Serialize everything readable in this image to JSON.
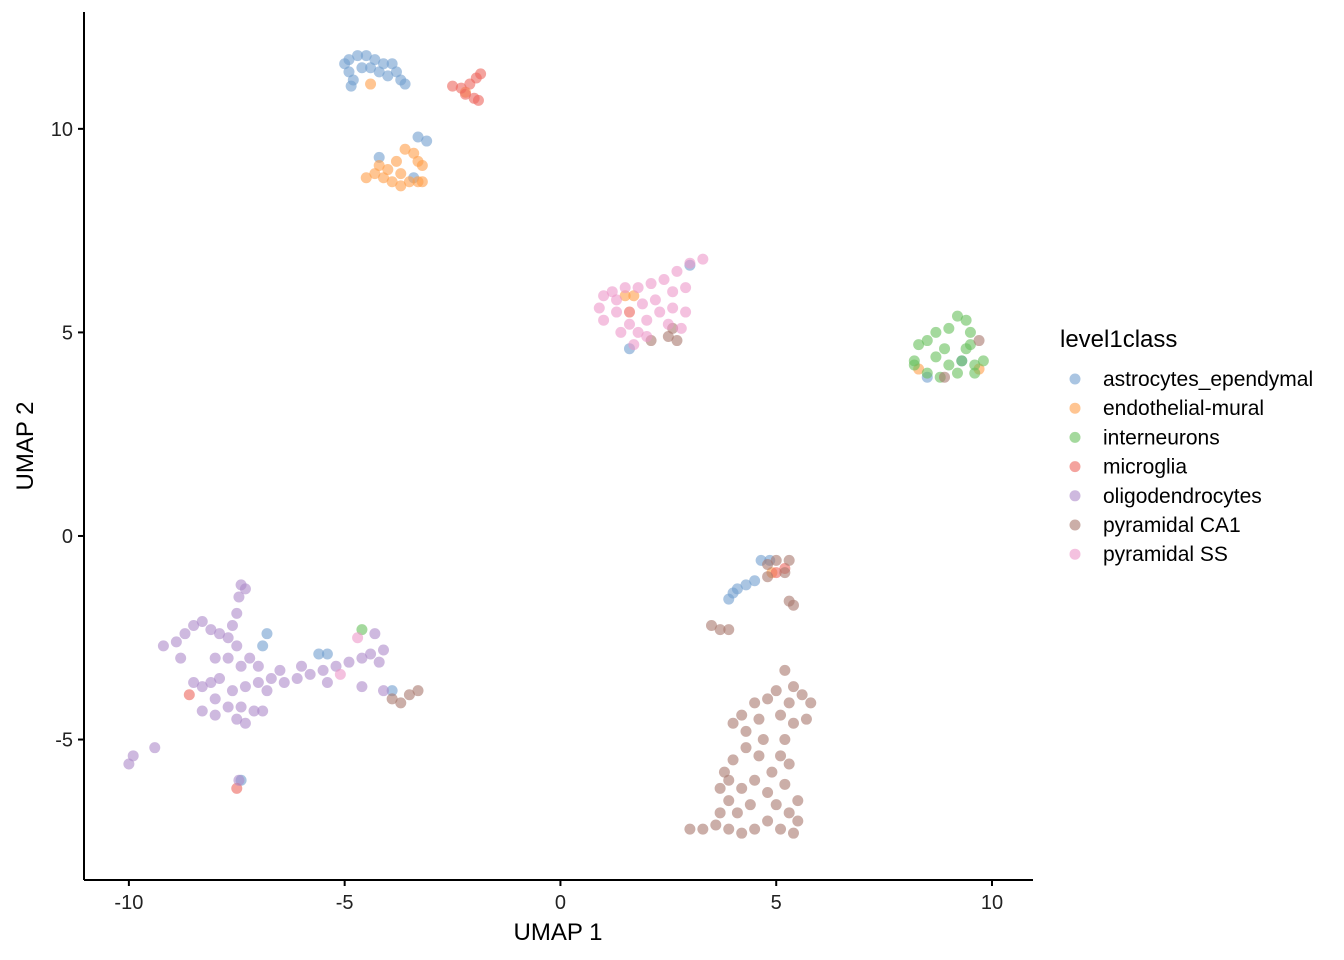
{
  "chart_data": {
    "type": "scatter",
    "xlabel": "UMAP 1",
    "ylabel": "UMAP 2",
    "xlim": [
      -11.04,
      10.95
    ],
    "ylim": [
      -8.45,
      12.87
    ],
    "xticks": [
      -10,
      -5,
      0,
      5,
      10
    ],
    "yticks": [
      -5,
      0,
      5,
      10
    ],
    "grid": false,
    "point_alpha": 0.6,
    "legend": {
      "title": "level1class",
      "placement": "right"
    },
    "series": [
      {
        "name": "astrocytes_ependymal",
        "color": "#729ECE",
        "points": [
          [
            -4.9,
            11.7
          ],
          [
            -4.7,
            11.8
          ],
          [
            -4.5,
            11.8
          ],
          [
            -4.3,
            11.7
          ],
          [
            -4.1,
            11.6
          ],
          [
            -3.9,
            11.6
          ],
          [
            -3.8,
            11.4
          ],
          [
            -3.7,
            11.2
          ],
          [
            -3.6,
            11.1
          ],
          [
            -4.9,
            11.4
          ],
          [
            -4.8,
            11.2
          ],
          [
            -4.6,
            11.5
          ],
          [
            -4.4,
            11.5
          ],
          [
            -4.2,
            11.4
          ],
          [
            -4.0,
            11.3
          ],
          [
            -5.0,
            11.6
          ],
          [
            -4.85,
            11.05
          ],
          [
            -4.2,
            9.3
          ],
          [
            -3.3,
            9.8
          ],
          [
            -3.1,
            9.7
          ],
          [
            -3.4,
            8.8
          ],
          [
            3.0,
            6.65
          ],
          [
            1.6,
            4.6
          ],
          [
            8.5,
            3.9
          ],
          [
            9.3,
            4.3
          ],
          [
            3.9,
            -1.55
          ],
          [
            4.0,
            -1.4
          ],
          [
            4.1,
            -1.3
          ],
          [
            4.3,
            -1.2
          ],
          [
            4.5,
            -1.1
          ],
          [
            4.65,
            -0.6
          ],
          [
            4.85,
            -0.6
          ],
          [
            -6.8,
            -2.4
          ],
          [
            -6.9,
            -2.7
          ],
          [
            -5.6,
            -2.9
          ],
          [
            -5.4,
            -2.9
          ],
          [
            -7.4,
            -6.0
          ],
          [
            -3.9,
            -3.8
          ]
        ]
      },
      {
        "name": "endothelial-mural",
        "color": "#FF9E4A",
        "points": [
          [
            -4.5,
            8.8
          ],
          [
            -4.3,
            8.9
          ],
          [
            -4.1,
            8.8
          ],
          [
            -3.9,
            8.7
          ],
          [
            -3.7,
            8.6
          ],
          [
            -3.5,
            8.7
          ],
          [
            -3.3,
            8.7
          ],
          [
            -3.2,
            8.7
          ],
          [
            -4.0,
            9.0
          ],
          [
            -3.8,
            9.2
          ],
          [
            -3.6,
            9.5
          ],
          [
            -3.4,
            9.4
          ],
          [
            -3.3,
            9.2
          ],
          [
            -3.2,
            9.1
          ],
          [
            -4.2,
            9.1
          ],
          [
            -3.7,
            8.9
          ],
          [
            -4.4,
            11.1
          ],
          [
            -2.2,
            10.9
          ],
          [
            1.5,
            5.9
          ],
          [
            1.7,
            5.9
          ],
          [
            8.3,
            4.1
          ],
          [
            9.7,
            4.1
          ],
          [
            4.9,
            -0.9
          ]
        ]
      },
      {
        "name": "interneurons",
        "color": "#67BF5C",
        "points": [
          [
            8.2,
            4.3
          ],
          [
            8.3,
            4.7
          ],
          [
            8.5,
            4.8
          ],
          [
            8.7,
            4.4
          ],
          [
            8.9,
            4.6
          ],
          [
            9.0,
            5.1
          ],
          [
            9.2,
            5.4
          ],
          [
            9.4,
            5.3
          ],
          [
            9.5,
            5.0
          ],
          [
            9.4,
            4.6
          ],
          [
            9.3,
            4.3
          ],
          [
            9.6,
            4.2
          ],
          [
            9.8,
            4.3
          ],
          [
            9.6,
            4.0
          ],
          [
            9.2,
            4.0
          ],
          [
            8.8,
            3.9
          ],
          [
            8.5,
            4.0
          ],
          [
            8.2,
            4.2
          ],
          [
            9.0,
            4.2
          ],
          [
            8.7,
            5.0
          ],
          [
            9.5,
            4.7
          ],
          [
            -4.6,
            -2.3
          ]
        ]
      },
      {
        "name": "microglia",
        "color": "#ED665D",
        "points": [
          [
            -2.5,
            11.05
          ],
          [
            -2.3,
            11.0
          ],
          [
            -2.1,
            11.1
          ],
          [
            -1.95,
            11.25
          ],
          [
            -1.85,
            11.35
          ],
          [
            -1.9,
            10.7
          ],
          [
            -2.0,
            10.75
          ],
          [
            -2.2,
            10.85
          ],
          [
            1.6,
            5.5
          ],
          [
            -8.6,
            -3.9
          ],
          [
            -7.5,
            -6.2
          ],
          [
            5.0,
            -0.9
          ],
          [
            5.2,
            -0.8
          ]
        ]
      },
      {
        "name": "oligodendrocytes",
        "color": "#AD8BC9",
        "points": [
          [
            -8.9,
            -2.6
          ],
          [
            -8.7,
            -2.4
          ],
          [
            -8.5,
            -2.2
          ],
          [
            -8.3,
            -2.1
          ],
          [
            -8.1,
            -2.3
          ],
          [
            -7.9,
            -2.4
          ],
          [
            -7.7,
            -2.5
          ],
          [
            -7.6,
            -2.2
          ],
          [
            -7.5,
            -1.9
          ],
          [
            -7.45,
            -1.5
          ],
          [
            -7.4,
            -1.2
          ],
          [
            -7.3,
            -1.3
          ],
          [
            -7.5,
            -2.7
          ],
          [
            -7.7,
            -3.0
          ],
          [
            -7.4,
            -3.2
          ],
          [
            -7.2,
            -3.0
          ],
          [
            -7.0,
            -3.2
          ],
          [
            -7.9,
            -3.5
          ],
          [
            -8.1,
            -3.6
          ],
          [
            -8.3,
            -3.7
          ],
          [
            -8.0,
            -4.0
          ],
          [
            -8.3,
            -4.3
          ],
          [
            -8.0,
            -4.4
          ],
          [
            -7.7,
            -4.2
          ],
          [
            -7.4,
            -4.2
          ],
          [
            -7.5,
            -4.5
          ],
          [
            -7.6,
            -3.8
          ],
          [
            -7.3,
            -3.7
          ],
          [
            -7.0,
            -3.6
          ],
          [
            -6.7,
            -3.5
          ],
          [
            -6.4,
            -3.6
          ],
          [
            -6.1,
            -3.5
          ],
          [
            -5.8,
            -3.4
          ],
          [
            -5.5,
            -3.3
          ],
          [
            -5.2,
            -3.2
          ],
          [
            -4.9,
            -3.1
          ],
          [
            -4.6,
            -3.0
          ],
          [
            -4.4,
            -2.9
          ],
          [
            -4.1,
            -2.8
          ],
          [
            -4.3,
            -2.4
          ],
          [
            -4.2,
            -3.1
          ],
          [
            -7.1,
            -4.3
          ],
          [
            -9.2,
            -2.7
          ],
          [
            -8.8,
            -3.0
          ],
          [
            -8.5,
            -3.6
          ],
          [
            -8.0,
            -3.0
          ],
          [
            -6.8,
            -3.8
          ],
          [
            -6.5,
            -3.3
          ],
          [
            -6.0,
            -3.2
          ],
          [
            -5.4,
            -3.6
          ],
          [
            -7.3,
            -4.6
          ],
          [
            -4.6,
            -3.7
          ],
          [
            -4.1,
            -3.8
          ],
          [
            -10.0,
            -5.6
          ],
          [
            -9.9,
            -5.4
          ],
          [
            -9.4,
            -5.2
          ],
          [
            -7.45,
            -6.0
          ],
          [
            -6.9,
            -4.3
          ]
        ]
      },
      {
        "name": "pyramidal CA1",
        "color": "#A8786E",
        "points": [
          [
            5.2,
            -3.3
          ],
          [
            5.4,
            -3.7
          ],
          [
            5.6,
            -3.9
          ],
          [
            5.8,
            -4.1
          ],
          [
            5.7,
            -4.5
          ],
          [
            5.3,
            -4.1
          ],
          [
            5.0,
            -3.8
          ],
          [
            4.8,
            -4.0
          ],
          [
            4.5,
            -4.1
          ],
          [
            4.2,
            -4.4
          ],
          [
            4.0,
            -4.6
          ],
          [
            4.3,
            -4.8
          ],
          [
            4.6,
            -4.5
          ],
          [
            5.1,
            -4.4
          ],
          [
            5.4,
            -4.6
          ],
          [
            5.2,
            -5.0
          ],
          [
            5.1,
            -5.4
          ],
          [
            4.9,
            -5.8
          ],
          [
            4.6,
            -5.4
          ],
          [
            4.3,
            -5.2
          ],
          [
            4.0,
            -5.5
          ],
          [
            3.8,
            -5.8
          ],
          [
            3.7,
            -6.2
          ],
          [
            3.9,
            -6.5
          ],
          [
            4.2,
            -6.2
          ],
          [
            4.5,
            -6.0
          ],
          [
            4.8,
            -6.3
          ],
          [
            5.0,
            -6.6
          ],
          [
            5.3,
            -6.8
          ],
          [
            5.5,
            -7.0
          ],
          [
            5.4,
            -7.3
          ],
          [
            5.1,
            -7.2
          ],
          [
            4.8,
            -7.0
          ],
          [
            4.5,
            -7.2
          ],
          [
            4.2,
            -7.3
          ],
          [
            3.9,
            -7.2
          ],
          [
            3.6,
            -7.1
          ],
          [
            3.3,
            -7.2
          ],
          [
            3.0,
            -7.2
          ],
          [
            3.7,
            -6.8
          ],
          [
            4.1,
            -6.8
          ],
          [
            4.4,
            -6.6
          ],
          [
            5.2,
            -6.1
          ],
          [
            5.5,
            -6.5
          ],
          [
            4.7,
            -5.0
          ],
          [
            3.9,
            -6.0
          ],
          [
            5.3,
            -5.6
          ],
          [
            3.5,
            -2.2
          ],
          [
            3.7,
            -2.3
          ],
          [
            3.9,
            -2.3
          ],
          [
            5.3,
            -1.6
          ],
          [
            5.4,
            -1.7
          ],
          [
            4.8,
            -0.7
          ],
          [
            5.0,
            -0.6
          ],
          [
            5.3,
            -0.6
          ],
          [
            5.2,
            -0.9
          ],
          [
            4.8,
            -1.0
          ],
          [
            -3.7,
            -4.1
          ],
          [
            -3.9,
            -4.0
          ],
          [
            -3.5,
            -3.9
          ],
          [
            -3.3,
            -3.8
          ],
          [
            2.1,
            4.8
          ],
          [
            2.5,
            4.9
          ],
          [
            2.7,
            4.8
          ],
          [
            2.6,
            5.1
          ],
          [
            8.9,
            3.9
          ],
          [
            9.7,
            4.8
          ]
        ]
      },
      {
        "name": "pyramidal SS",
        "color": "#ED97CA",
        "points": [
          [
            0.9,
            5.6
          ],
          [
            1.0,
            5.9
          ],
          [
            1.2,
            6.0
          ],
          [
            1.5,
            6.1
          ],
          [
            1.8,
            6.1
          ],
          [
            2.1,
            6.2
          ],
          [
            2.4,
            6.3
          ],
          [
            2.7,
            6.5
          ],
          [
            3.0,
            6.7
          ],
          [
            3.3,
            6.8
          ],
          [
            1.0,
            5.3
          ],
          [
            1.3,
            5.5
          ],
          [
            1.6,
            5.2
          ],
          [
            1.4,
            5.0
          ],
          [
            1.8,
            5.0
          ],
          [
            2.0,
            5.3
          ],
          [
            2.3,
            5.5
          ],
          [
            2.6,
            5.6
          ],
          [
            2.9,
            5.5
          ],
          [
            2.8,
            5.1
          ],
          [
            2.5,
            5.2
          ],
          [
            2.2,
            5.8
          ],
          [
            1.9,
            5.7
          ],
          [
            2.6,
            6.0
          ],
          [
            2.9,
            6.1
          ],
          [
            1.3,
            5.8
          ],
          [
            1.7,
            4.7
          ],
          [
            2.0,
            4.9
          ],
          [
            -4.7,
            -2.5
          ],
          [
            -5.1,
            -3.4
          ]
        ]
      }
    ]
  }
}
